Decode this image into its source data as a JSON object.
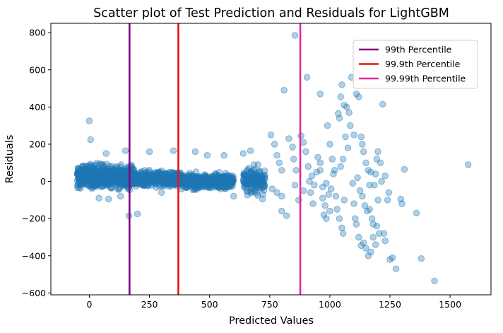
{
  "chart_data": {
    "type": "scatter",
    "title": "Scatter plot of Test Prediction and Residuals for LightGBM",
    "xlabel": "Predicted Values",
    "ylabel": "Residuals",
    "xlim": [
      -160,
      1670
    ],
    "ylim": [
      -610,
      850
    ],
    "xticks": [
      0,
      250,
      500,
      750,
      1000,
      1250,
      1500
    ],
    "yticks": [
      -600,
      -400,
      -200,
      0,
      200,
      400,
      600,
      800
    ],
    "grid": false,
    "point_color": "#1f77b4",
    "point_alpha": 0.35,
    "legend_position": "upper right",
    "vlines": [
      {
        "name": "99th Percentile",
        "x": 167,
        "color": "#800080"
      },
      {
        "name": "99.9th Percentile",
        "x": 370,
        "color": "#e8141c"
      },
      {
        "name": "99.99th Percentile",
        "x": 877,
        "color": "#e6259e"
      }
    ],
    "dense_bands": [
      {
        "x_from": -50,
        "x_to": 180,
        "y_center": 25,
        "y_spread": 55,
        "count": 700
      },
      {
        "x_from": 180,
        "x_to": 380,
        "y_center": 15,
        "y_spread": 40,
        "count": 400
      },
      {
        "x_from": 380,
        "x_to": 600,
        "y_center": 0,
        "y_spread": 35,
        "count": 450
      },
      {
        "x_from": 640,
        "x_to": 730,
        "y_center": 5,
        "y_spread": 60,
        "count": 150
      }
    ],
    "points": [
      [
        0,
        325
      ],
      [
        5,
        225
      ],
      [
        70,
        150
      ],
      [
        150,
        165
      ],
      [
        250,
        160
      ],
      [
        350,
        165
      ],
      [
        440,
        160
      ],
      [
        490,
        140
      ],
      [
        560,
        140
      ],
      [
        640,
        150
      ],
      [
        670,
        165
      ],
      [
        165,
        -185
      ],
      [
        200,
        -175
      ],
      [
        40,
        -90
      ],
      [
        80,
        -95
      ],
      [
        130,
        -80
      ],
      [
        300,
        -60
      ],
      [
        600,
        -80
      ],
      [
        700,
        -75
      ],
      [
        720,
        -95
      ],
      [
        755,
        250
      ],
      [
        770,
        200
      ],
      [
        780,
        140
      ],
      [
        790,
        100
      ],
      [
        800,
        60
      ],
      [
        760,
        -40
      ],
      [
        780,
        -60
      ],
      [
        800,
        -80
      ],
      [
        810,
        490
      ],
      [
        830,
        230
      ],
      [
        845,
        185
      ],
      [
        850,
        120
      ],
      [
        860,
        60
      ],
      [
        855,
        -20
      ],
      [
        870,
        -100
      ],
      [
        820,
        -185
      ],
      [
        800,
        -160
      ],
      [
        855,
        785
      ],
      [
        905,
        560
      ],
      [
        880,
        245
      ],
      [
        890,
        210
      ],
      [
        900,
        160
      ],
      [
        910,
        80
      ],
      [
        920,
        -60
      ],
      [
        930,
        -120
      ],
      [
        890,
        -50
      ],
      [
        950,
        130
      ],
      [
        960,
        60
      ],
      [
        970,
        -30
      ],
      [
        975,
        -180
      ],
      [
        985,
        -200
      ],
      [
        960,
        470
      ],
      [
        990,
        300
      ],
      [
        1000,
        200
      ],
      [
        1010,
        120
      ],
      [
        1020,
        60
      ],
      [
        1025,
        -80
      ],
      [
        1030,
        -150
      ],
      [
        1040,
        -200
      ],
      [
        1050,
        -250
      ],
      [
        1055,
        -280
      ],
      [
        1060,
        -100
      ],
      [
        1035,
        365
      ],
      [
        1040,
        340
      ],
      [
        1045,
        455
      ],
      [
        1050,
        520
      ],
      [
        1060,
        410
      ],
      [
        1070,
        400
      ],
      [
        1080,
        370
      ],
      [
        1085,
        300
      ],
      [
        1090,
        560
      ],
      [
        1110,
        470
      ],
      [
        1120,
        455
      ],
      [
        1130,
        240
      ],
      [
        1135,
        200
      ],
      [
        1140,
        160
      ],
      [
        1150,
        100
      ],
      [
        1160,
        60
      ],
      [
        1100,
        250
      ],
      [
        1095,
        -10
      ],
      [
        1100,
        -120
      ],
      [
        1105,
        -200
      ],
      [
        1110,
        -230
      ],
      [
        1120,
        -300
      ],
      [
        1130,
        -345
      ],
      [
        1140,
        -330
      ],
      [
        1150,
        -360
      ],
      [
        1160,
        -400
      ],
      [
        1170,
        -380
      ],
      [
        1180,
        -300
      ],
      [
        1175,
        -200
      ],
      [
        1165,
        -150
      ],
      [
        1185,
        -20
      ],
      [
        1190,
        40
      ],
      [
        1195,
        120
      ],
      [
        1200,
        160
      ],
      [
        1210,
        100
      ],
      [
        1220,
        415
      ],
      [
        1225,
        -280
      ],
      [
        1230,
        -320
      ],
      [
        1240,
        -100
      ],
      [
        1245,
        -60
      ],
      [
        1250,
        -420
      ],
      [
        1260,
        -410
      ],
      [
        1275,
        -470
      ],
      [
        1295,
        -95
      ],
      [
        1300,
        -120
      ],
      [
        1310,
        65
      ],
      [
        1360,
        -170
      ],
      [
        1380,
        -415
      ],
      [
        1435,
        -535
      ],
      [
        1575,
        90
      ],
      [
        1200,
        -100
      ],
      [
        1190,
        -340
      ],
      [
        1215,
        0
      ],
      [
        1230,
        30
      ],
      [
        1195,
        -240
      ],
      [
        1205,
        -280
      ],
      [
        1180,
        -230
      ],
      [
        1000,
        -160
      ],
      [
        980,
        -130
      ],
      [
        970,
        -90
      ],
      [
        960,
        100
      ],
      [
        945,
        50
      ],
      [
        935,
        -20
      ],
      [
        925,
        30
      ],
      [
        915,
        0
      ],
      [
        1065,
        240
      ],
      [
        1075,
        180
      ],
      [
        1055,
        120
      ],
      [
        1045,
        80
      ],
      [
        1015,
        40
      ],
      [
        1005,
        -40
      ],
      [
        995,
        -70
      ],
      [
        985,
        -10
      ],
      [
        1115,
        20
      ],
      [
        1125,
        -50
      ],
      [
        1135,
        -80
      ],
      [
        1145,
        -130
      ],
      [
        1155,
        -160
      ],
      [
        1165,
        -20
      ],
      [
        1170,
        50
      ]
    ]
  }
}
